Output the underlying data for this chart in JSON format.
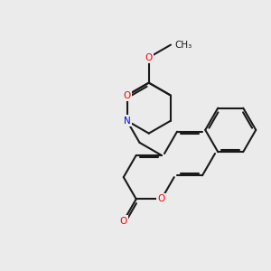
{
  "background_color": "#ebebeb",
  "bond_color": "#1a1a1a",
  "atom_colors": {
    "O": "#ff0000",
    "N": "#0000ff"
  },
  "lw": 1.5,
  "fontsize": 7.5
}
